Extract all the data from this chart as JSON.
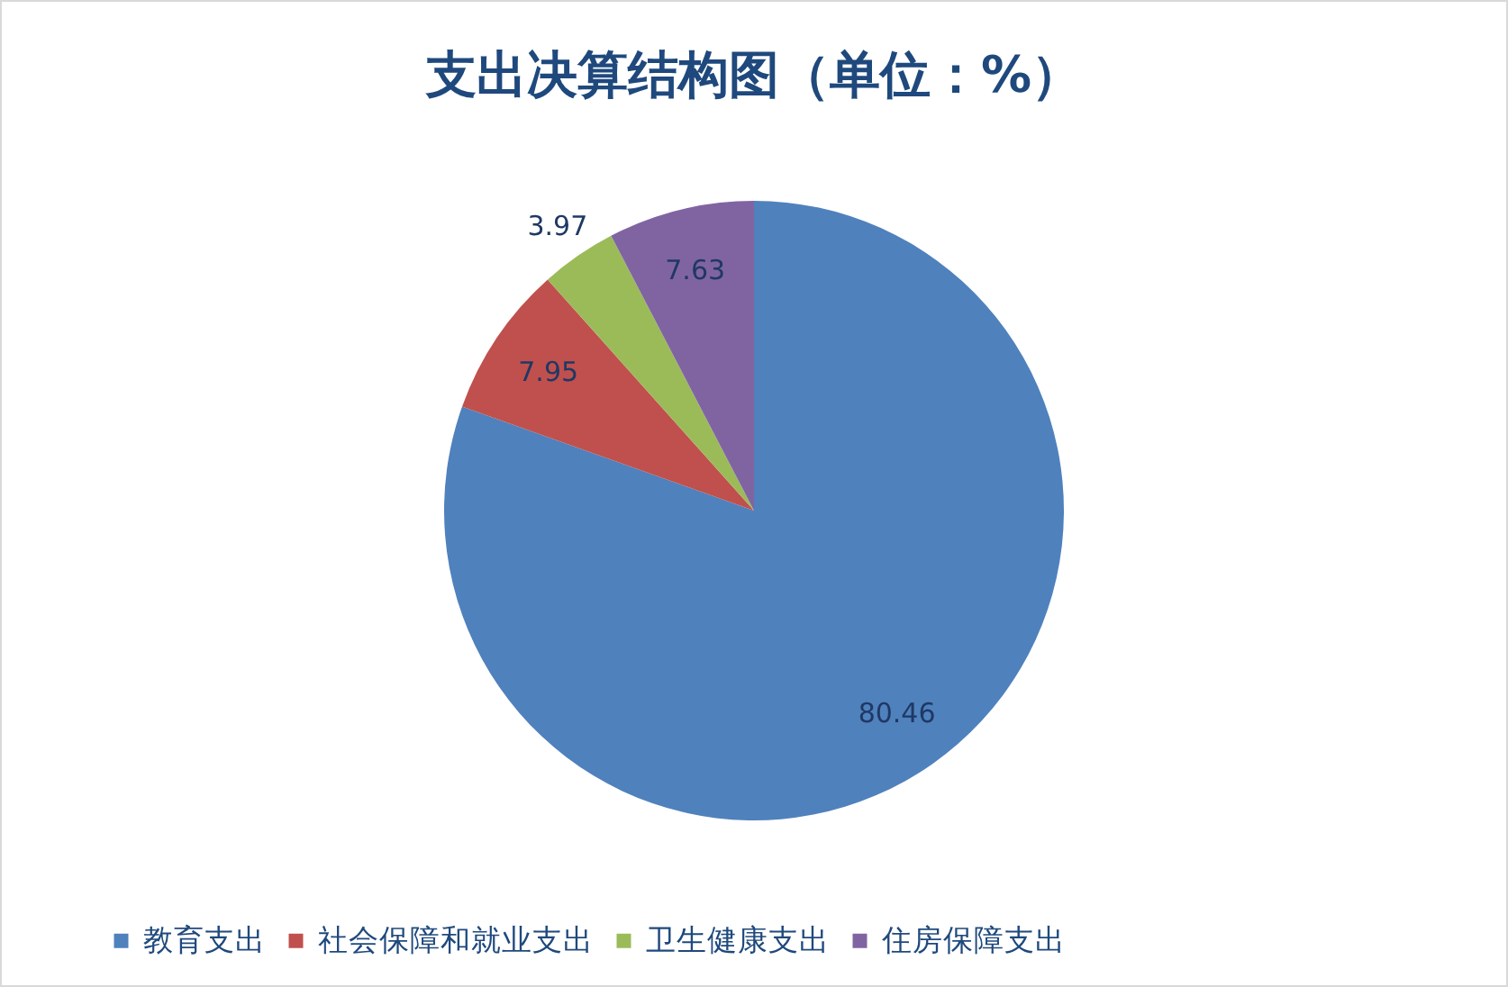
{
  "chart_data": {
    "type": "pie",
    "title": "支出决算结构图（单位：%）",
    "categories": [
      "教育支出",
      "社会保障和就业支出",
      "卫生健康支出",
      "住房保障支出"
    ],
    "values": [
      80.46,
      7.95,
      3.97,
      7.63
    ],
    "colors": [
      "#4f81bd",
      "#c0504d",
      "#9bbb59",
      "#8064a2"
    ],
    "data_labels": true,
    "legend": "bottom"
  }
}
